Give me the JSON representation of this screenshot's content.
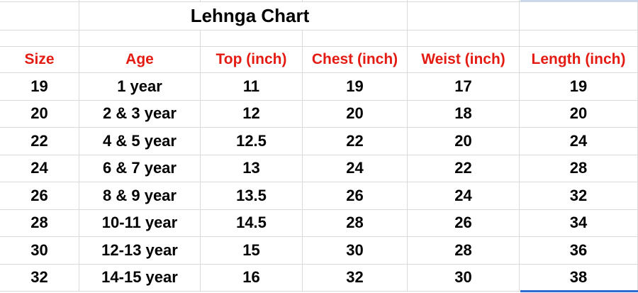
{
  "sheet": {
    "title": "Lehnga Chart",
    "columns": [
      "Size",
      "Age",
      "Top (inch)",
      "Chest (inch)",
      "Weist (inch)",
      "Length (inch)"
    ],
    "rows": [
      [
        "19",
        "1 year",
        "11",
        "19",
        "17",
        "19"
      ],
      [
        "20",
        "2 & 3 year",
        "12",
        "20",
        "18",
        "20"
      ],
      [
        "22",
        "4 & 5 year",
        "12.5",
        "22",
        "20",
        "24"
      ],
      [
        "24",
        "6 & 7 year",
        "13",
        "24",
        "22",
        "28"
      ],
      [
        "26",
        "8 & 9 year",
        "13.5",
        "26",
        "24",
        "32"
      ],
      [
        "28",
        "10-11 year",
        "14.5",
        "28",
        "26",
        "34"
      ],
      [
        "30",
        "12-13 year",
        "15",
        "30",
        "28",
        "36"
      ],
      [
        "32",
        "14-15 year",
        "16",
        "32",
        "30",
        "38"
      ]
    ],
    "colors": {
      "header_text": "#e41b13",
      "body_text": "#000000",
      "gridline": "#dadada",
      "selection_border": "#2d6cd2",
      "selection_fill": "#ccd7ea"
    }
  }
}
